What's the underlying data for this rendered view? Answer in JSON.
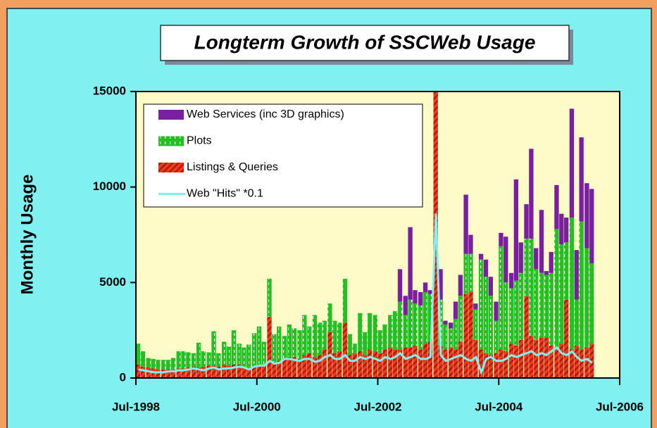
{
  "chart_data": {
    "type": "bar",
    "stacked": true,
    "title": "Longterm Growth of SSCWeb Usage",
    "y_label": "Monthly Usage",
    "legend": "upper left",
    "xlim": [
      1998.5,
      2006.5
    ],
    "xticks": [
      {
        "value": 1998.5,
        "label": "Jul-1998"
      },
      {
        "value": 2000.5,
        "label": "Jul-2000"
      },
      {
        "value": 2002.5,
        "label": "Jul-2002"
      },
      {
        "value": 2004.5,
        "label": "Jul-2004"
      },
      {
        "value": 2006.5,
        "label": "Jul-2006"
      }
    ],
    "ylim": [
      0,
      15000
    ],
    "yticks": [
      0,
      5000,
      10000,
      15000
    ],
    "x": [
      1998.5,
      1998.58,
      1998.67,
      1998.75,
      1998.83,
      1998.92,
      1999.0,
      1999.08,
      1999.17,
      1999.25,
      1999.33,
      1999.42,
      1999.5,
      1999.58,
      1999.67,
      1999.75,
      1999.83,
      1999.92,
      2000.0,
      2000.08,
      2000.17,
      2000.25,
      2000.33,
      2000.42,
      2000.5,
      2000.58,
      2000.67,
      2000.75,
      2000.83,
      2000.92,
      2001.0,
      2001.08,
      2001.17,
      2001.25,
      2001.33,
      2001.42,
      2001.5,
      2001.58,
      2001.67,
      2001.75,
      2001.83,
      2001.92,
      2002.0,
      2002.08,
      2002.17,
      2002.25,
      2002.33,
      2002.42,
      2002.5,
      2002.58,
      2002.67,
      2002.75,
      2002.83,
      2002.92,
      2003.0,
      2003.08,
      2003.17,
      2003.25,
      2003.33,
      2003.42,
      2003.5,
      2003.58,
      2003.67,
      2003.75,
      2003.83,
      2003.92,
      2004.0,
      2004.08,
      2004.17,
      2004.25,
      2004.33,
      2004.42,
      2004.5,
      2004.58,
      2004.67,
      2004.75,
      2004.83,
      2004.92,
      2005.0,
      2005.08,
      2005.17,
      2005.25,
      2005.33,
      2005.42,
      2005.5,
      2005.58,
      2005.67,
      2005.75,
      2005.83,
      2005.92,
      2006.0
    ],
    "series": [
      {
        "name": "Web Services (inc 3D graphics)",
        "color": "#7b1fa2",
        "fill": "solid",
        "values": [
          0,
          0,
          0,
          0,
          0,
          0,
          0,
          0,
          0,
          0,
          0,
          0,
          0,
          0,
          0,
          0,
          0,
          0,
          0,
          0,
          0,
          0,
          0,
          0,
          0,
          0,
          0,
          0,
          0,
          0,
          0,
          0,
          0,
          0,
          0,
          0,
          0,
          0,
          0,
          0,
          0,
          0,
          0,
          0,
          0,
          0,
          0,
          0,
          0,
          0,
          0,
          0,
          1700,
          1000,
          3800,
          700,
          700,
          500,
          200,
          0,
          1600,
          200,
          300,
          900,
          1100,
          3100,
          1000,
          300,
          300,
          900,
          1000,
          1000,
          700,
          2400,
          800,
          5300,
          1600,
          1800,
          4700,
          1100,
          3300,
          200,
          1100,
          2300,
          1600,
          1300,
          5700,
          2600,
          4400,
          3400,
          3900
        ]
      },
      {
        "name": "Plots",
        "color": "#22c022",
        "fill": "dashed",
        "values": [
          1100,
          800,
          500,
          500,
          500,
          500,
          500,
          600,
          900,
          900,
          800,
          700,
          1300,
          800,
          700,
          1800,
          700,
          1200,
          1000,
          1800,
          1100,
          1000,
          1200,
          1700,
          2000,
          1200,
          2000,
          1500,
          1800,
          1200,
          1700,
          1500,
          1500,
          2100,
          1400,
          2200,
          1700,
          1500,
          1500,
          1700,
          1500,
          2300,
          1100,
          500,
          2000,
          1200,
          1900,
          1900,
          1200,
          1300,
          1700,
          2000,
          2500,
          1700,
          2500,
          2200,
          2300,
          2700,
          2500,
          0,
          2400,
          1300,
          1000,
          1600,
          2400,
          2100,
          2000,
          1600,
          4700,
          4000,
          3100,
          1700,
          5400,
          3600,
          2900,
          3400,
          3500,
          3000,
          5100,
          3700,
          3400,
          3300,
          3800,
          6300,
          5200,
          3000,
          6900,
          2400,
          6700,
          5200,
          4200
        ]
      },
      {
        "name": "Listings & Queries",
        "color": "#e83c1c",
        "fill": "hatched",
        "values": [
          700,
          600,
          550,
          500,
          450,
          450,
          450,
          450,
          500,
          500,
          550,
          600,
          550,
          600,
          650,
          650,
          600,
          700,
          650,
          700,
          700,
          600,
          550,
          650,
          700,
          700,
          3200,
          800,
          900,
          1000,
          1100,
          1100,
          1000,
          1200,
          1300,
          1100,
          1200,
          1500,
          2400,
          1300,
          1400,
          2900,
          1200,
          1300,
          1400,
          1200,
          1500,
          1400,
          1300,
          1500,
          1600,
          1500,
          1500,
          1600,
          1600,
          1700,
          1500,
          1800,
          1900,
          15000,
          1700,
          1500,
          1600,
          1500,
          1900,
          4400,
          4500,
          2000,
          1500,
          1300,
          1200,
          1300,
          1500,
          1400,
          1800,
          1700,
          2000,
          4300,
          2200,
          2000,
          2100,
          2100,
          1700,
          1500,
          1800,
          4100,
          1500,
          1700,
          1500,
          1600,
          1800
        ]
      },
      {
        "name": "Web \"Hits\" *0.1",
        "color": "#80f0f0",
        "type": "line",
        "values": [
          450,
          400,
          350,
          300,
          300,
          300,
          350,
          350,
          400,
          400,
          450,
          500,
          450,
          400,
          500,
          550,
          450,
          500,
          500,
          550,
          600,
          550,
          450,
          600,
          650,
          650,
          900,
          750,
          800,
          1000,
          1000,
          950,
          900,
          1000,
          1000,
          850,
          900,
          1100,
          1200,
          1000,
          1000,
          1200,
          900,
          900,
          1100,
          1000,
          1100,
          1000,
          900,
          1100,
          1000,
          1100,
          1300,
          1000,
          1100,
          1200,
          1000,
          1000,
          1100,
          8600,
          1200,
          900,
          1000,
          1100,
          1200,
          1000,
          900,
          1100,
          300,
          1000,
          1100,
          900,
          900,
          1000,
          1200,
          1100,
          1200,
          1300,
          1400,
          1200,
          1300,
          1200,
          1400,
          1600,
          1300,
          1200,
          1400,
          1100,
          900,
          1000,
          800
        ]
      }
    ]
  }
}
